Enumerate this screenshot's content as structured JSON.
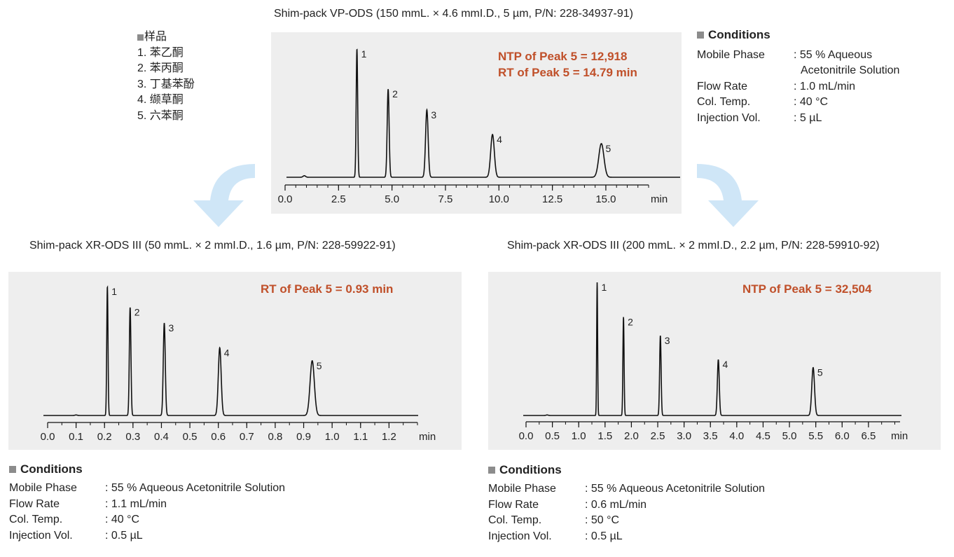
{
  "samples": {
    "heading": "样品",
    "items": [
      "1. 苯乙酮",
      "2. 苯丙酮",
      "3. 丁基苯酚",
      "4. 缬草酮",
      "5. 六苯酮"
    ]
  },
  "colors": {
    "panel_bg": "#eeeeee",
    "annotation": "#c0502a",
    "arrow": "#cfe6f7",
    "trace": "#111111"
  },
  "top_conditions": {
    "heading": "Conditions",
    "rows": [
      {
        "label": "Mobile Phase",
        "value": ": 55 % Aqueous",
        "value2": "Acetonitrile Solution"
      },
      {
        "label": "Flow Rate",
        "value": ": 1.0 mL/min"
      },
      {
        "label": "Col. Temp.",
        "value": ": 40 °C"
      },
      {
        "label": "Injection Vol.",
        "value": ": 5 µL"
      }
    ]
  },
  "left_conditions": {
    "heading": "Conditions",
    "rows": [
      {
        "label": "Mobile Phase",
        "value": ": 55 % Aqueous Acetonitrile Solution"
      },
      {
        "label": "Flow Rate",
        "value": ": 1.1 mL/min"
      },
      {
        "label": "Col. Temp.",
        "value": ": 40 °C"
      },
      {
        "label": "Injection Vol.",
        "value": ": 0.5 µL"
      }
    ]
  },
  "right_conditions": {
    "heading": "Conditions",
    "rows": [
      {
        "label": "Mobile Phase",
        "value": ": 55 % Aqueous Acetonitrile Solution"
      },
      {
        "label": "Flow Rate",
        "value": ": 0.6 mL/min"
      },
      {
        "label": "Col. Temp.",
        "value": ": 50 °C"
      },
      {
        "label": "Injection Vol.",
        "value": ": 0.5 µL"
      }
    ]
  },
  "chart_data": [
    {
      "type": "line",
      "title": "Shim-pack VP-ODS (150 mmL. × 4.6 mmI.D., 5 µm, P/N: 228-34937-91)",
      "annotations": [
        "NTP of Peak 5 = 12,918",
        "RT of Peak 5 = 14.79 min"
      ],
      "xlabel": "min",
      "xlim": [
        0,
        17
      ],
      "ylim": [
        0,
        1
      ],
      "ticks": [
        "0.0",
        "2.5",
        "5.0",
        "7.5",
        "10.0",
        "12.5",
        "15.0"
      ],
      "tick_values": [
        0,
        2.5,
        5,
        7.5,
        10,
        12.5,
        15
      ],
      "minor_step": 0.5,
      "small_bump": {
        "x": 0.9,
        "height": 0.012,
        "width": 0.06
      },
      "peaks": [
        {
          "label": "1",
          "x": 3.36,
          "height": 0.99,
          "width": 0.035
        },
        {
          "label": "2",
          "x": 4.82,
          "height": 0.68,
          "width": 0.045
        },
        {
          "label": "3",
          "x": 6.63,
          "height": 0.52,
          "width": 0.06
        },
        {
          "label": "4",
          "x": 9.7,
          "height": 0.33,
          "width": 0.085
        },
        {
          "label": "5",
          "x": 14.79,
          "height": 0.26,
          "width": 0.12
        }
      ]
    },
    {
      "type": "line",
      "title": "Shim-pack XR-ODS III (50 mmL. × 2 mmI.D., 1.6 µm, P/N: 228-59922-91)",
      "annotations": [
        "RT of Peak 5 = 0.93 min"
      ],
      "xlabel": "min",
      "xlim": [
        0,
        1.3
      ],
      "ylim": [
        0,
        1
      ],
      "ticks": [
        "0.0",
        "0.1",
        "0.2",
        "0.3",
        "0.4",
        "0.5",
        "0.6",
        "0.7",
        "0.8",
        "0.9",
        "1.0",
        "1.1",
        "1.2"
      ],
      "tick_values": [
        0,
        0.1,
        0.2,
        0.3,
        0.4,
        0.5,
        0.6,
        0.7,
        0.8,
        0.9,
        1.0,
        1.1,
        1.2
      ],
      "minor_step": 0.05,
      "small_bump": {
        "x": 0.1,
        "height": 0.004,
        "width": 0.004
      },
      "peaks": [
        {
          "label": "1",
          "x": 0.21,
          "height": 0.99,
          "width": 0.0022
        },
        {
          "label": "2",
          "x": 0.29,
          "height": 0.83,
          "width": 0.0028
        },
        {
          "label": "3",
          "x": 0.41,
          "height": 0.71,
          "width": 0.0035
        },
        {
          "label": "4",
          "x": 0.605,
          "height": 0.52,
          "width": 0.005
        },
        {
          "label": "5",
          "x": 0.93,
          "height": 0.42,
          "width": 0.0075
        }
      ]
    },
    {
      "type": "line",
      "title": "Shim-pack XR-ODS III (200 mmL. × 2 mmI.D., 2.2 µm, P/N: 228-59910-92)",
      "annotations": [
        "NTP of Peak 5 = 32,504"
      ],
      "xlabel": "min",
      "xlim": [
        0,
        7.1
      ],
      "ylim": [
        0,
        1
      ],
      "ticks": [
        "0.0",
        "0.5",
        "1.0",
        "1.5",
        "2.0",
        "2.5",
        "3.0",
        "3.5",
        "4.0",
        "4.5",
        "5.0",
        "5.5",
        "6.0",
        "6.5"
      ],
      "tick_values": [
        0,
        0.5,
        1.0,
        1.5,
        2.0,
        2.5,
        3.0,
        3.5,
        4.0,
        4.5,
        5.0,
        5.5,
        6.0,
        6.5
      ],
      "minor_step": 0.25,
      "small_bump": {
        "x": 0.4,
        "height": 0.004,
        "width": 0.02
      },
      "peaks": [
        {
          "label": "1",
          "x": 1.35,
          "height": 1.0,
          "width": 0.009
        },
        {
          "label": "2",
          "x": 1.85,
          "height": 0.74,
          "width": 0.011
        },
        {
          "label": "3",
          "x": 2.55,
          "height": 0.6,
          "width": 0.014
        },
        {
          "label": "4",
          "x": 3.65,
          "height": 0.42,
          "width": 0.018
        },
        {
          "label": "5",
          "x": 5.45,
          "height": 0.36,
          "width": 0.026
        }
      ]
    }
  ]
}
